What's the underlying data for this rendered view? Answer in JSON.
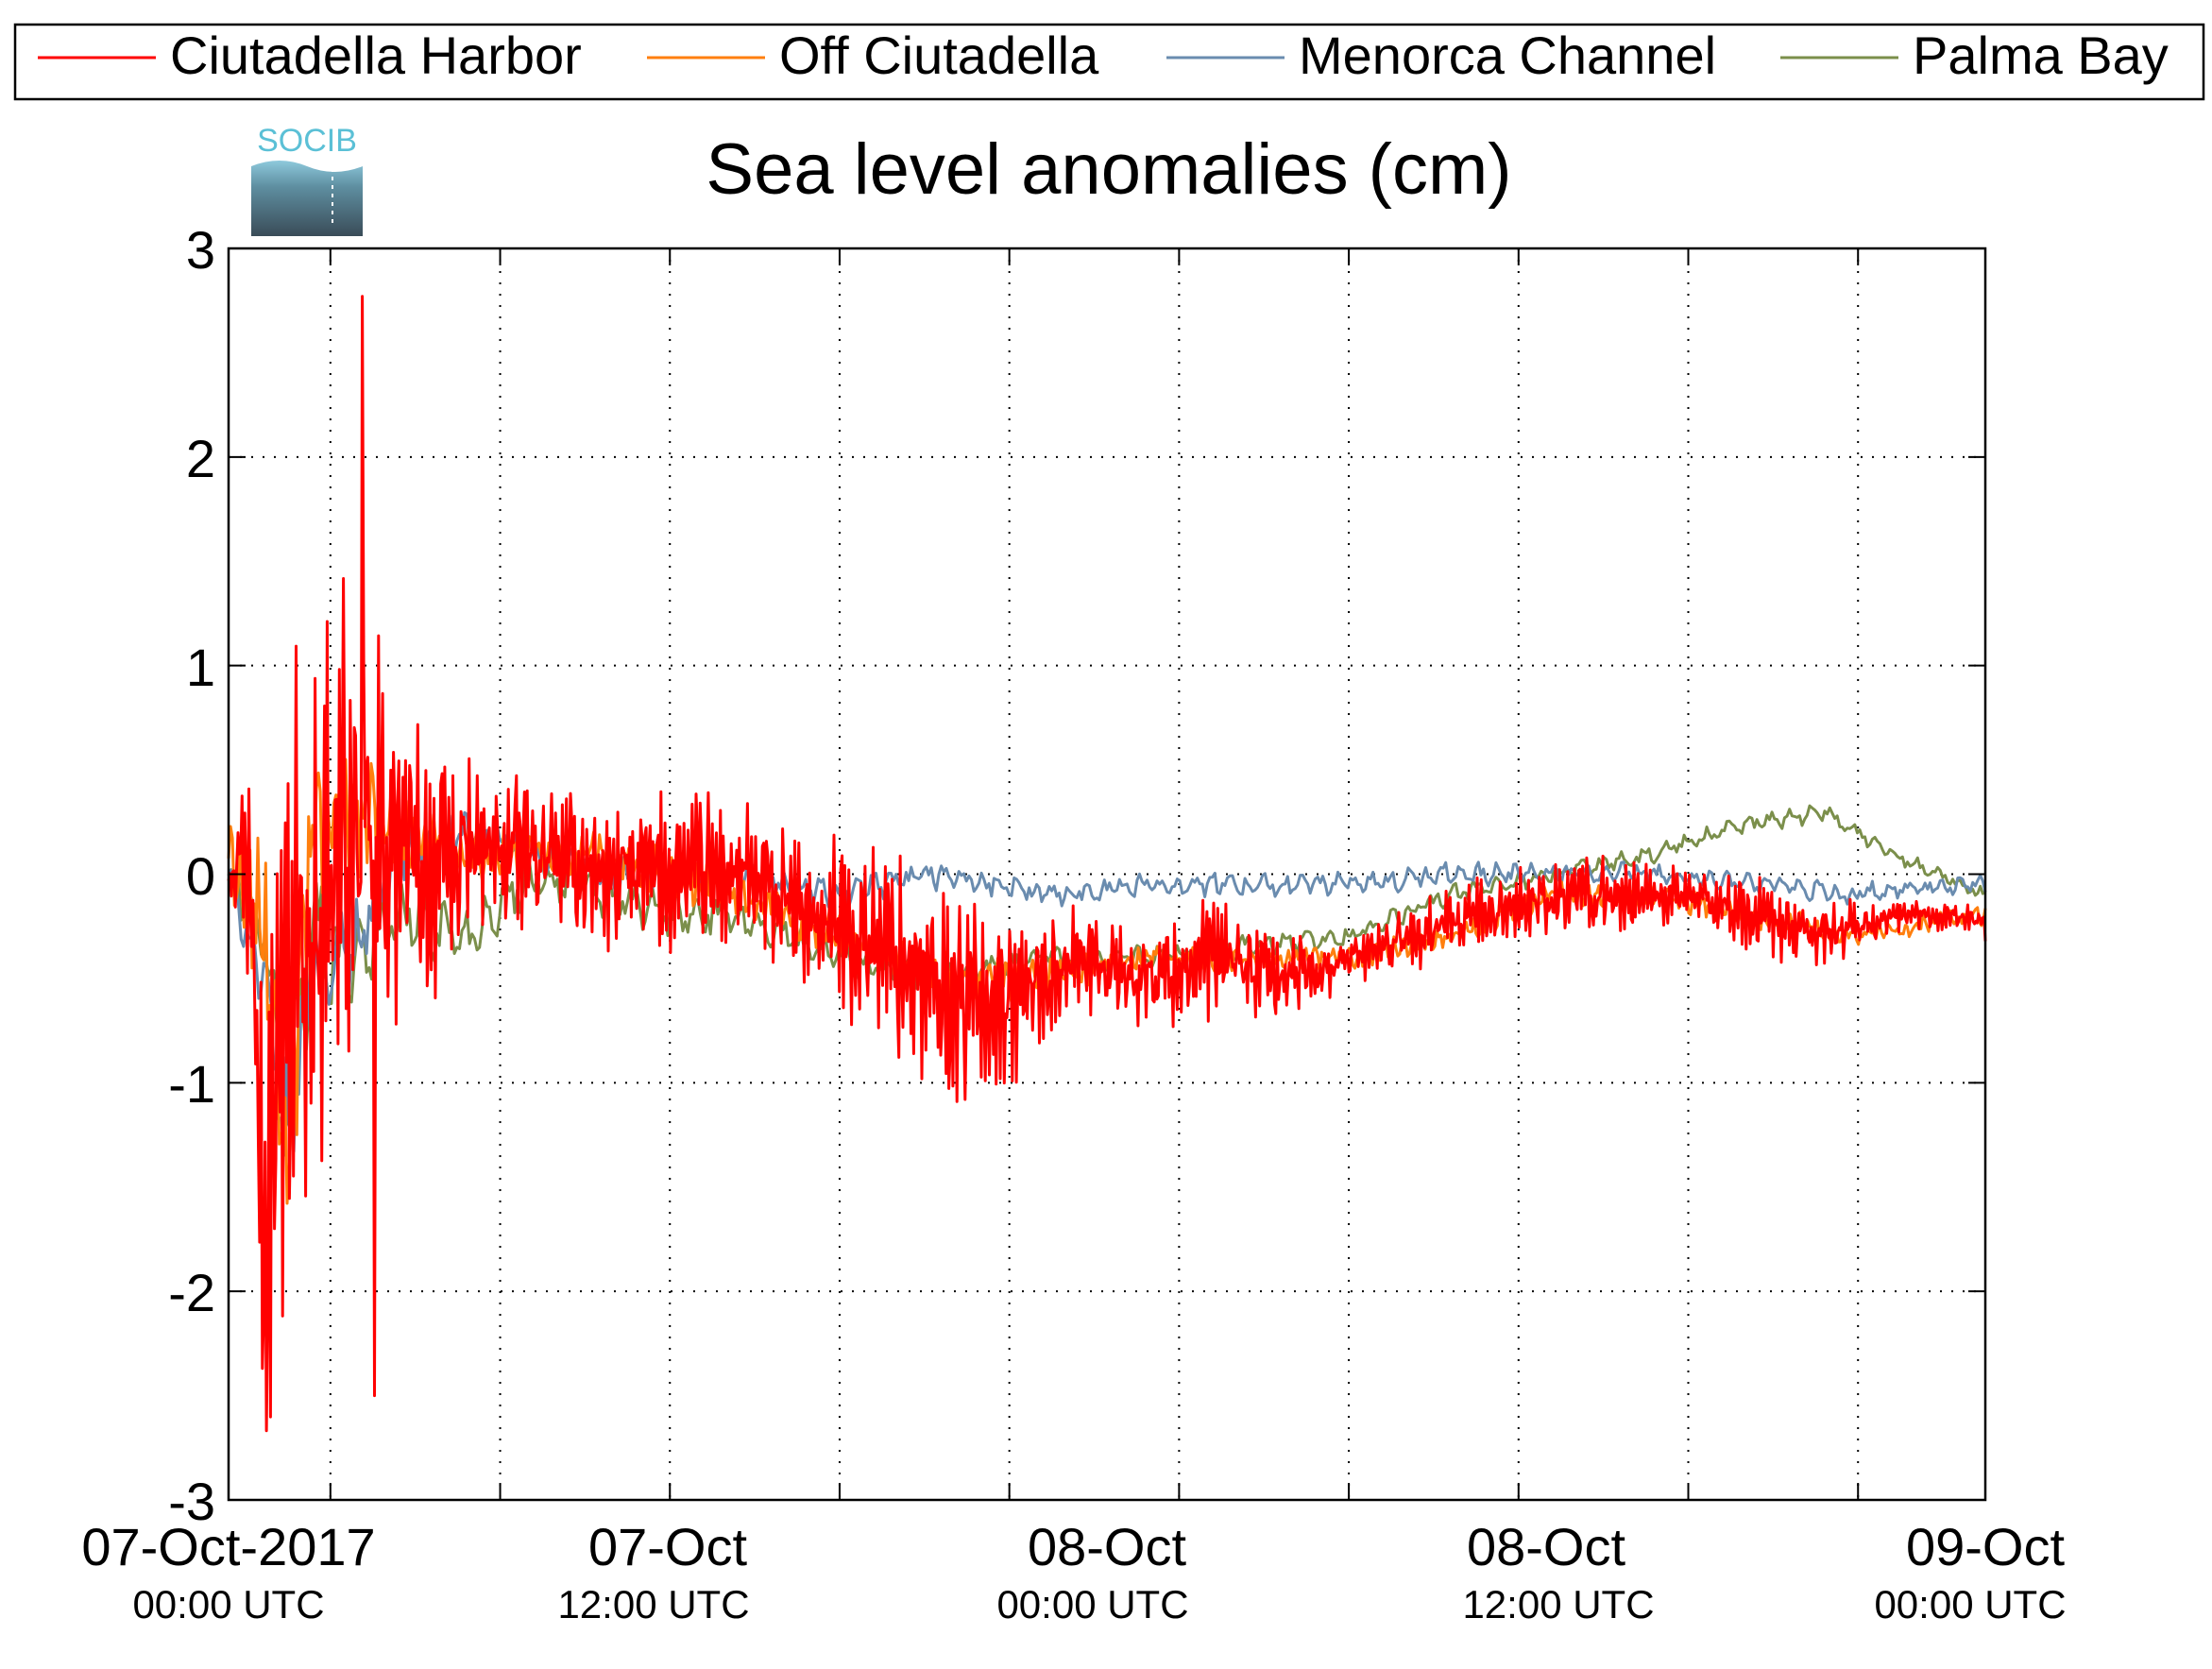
{
  "logo": {
    "text": "SOCIB"
  },
  "chart_data": {
    "type": "line",
    "title": "Sea level anomalies (cm)",
    "xlabel": "",
    "ylabel": "",
    "x_range": [
      "2017-10-06 21:00 UTC",
      "2017-10-09 00:45 UTC"
    ],
    "ylim": [
      -3,
      3
    ],
    "yticks": [
      "3",
      "2",
      "1",
      "0",
      "-1",
      "-2",
      "-3"
    ],
    "ytick_values": [
      3,
      2,
      1,
      0,
      -1,
      -2,
      -3
    ],
    "xtick_hours": [
      0,
      5,
      10,
      15,
      20,
      25,
      30,
      35,
      40,
      45,
      50,
      55,
      60,
      65,
      70,
      75
    ],
    "xtick_labels": [
      {
        "line1": "07-Oct-2017",
        "line2": "00:00 UTC",
        "time": "2017-10-07 00:00"
      },
      {
        "line1": "07-Oct",
        "line2": "12:00 UTC",
        "time": "2017-10-07 12:00"
      },
      {
        "line1": "08-Oct",
        "line2": "00:00 UTC",
        "time": "2017-10-08 00:00"
      },
      {
        "line1": "08-Oct",
        "line2": "12:00 UTC",
        "time": "2017-10-08 12:00"
      },
      {
        "line1": "09-Oct",
        "line2": "00:00 UTC",
        "time": "2017-10-09 00:00"
      }
    ],
    "grid": true,
    "legend_position": "top",
    "series": [
      {
        "name": "Ciutadella Harbor",
        "color": "#ff0000",
        "x": [
          "2017-10-06 21:00",
          "2017-10-06 21:30",
          "2017-10-06 22:00",
          "2017-10-06 23:00",
          "2017-10-07 00:00",
          "2017-10-07 01:00",
          "2017-10-07 02:00",
          "2017-10-07 03:00",
          "2017-10-07 04:00",
          "2017-10-07 06:00",
          "2017-10-07 08:00",
          "2017-10-07 10:00",
          "2017-10-07 12:00",
          "2017-10-07 14:00",
          "2017-10-07 16:00",
          "2017-10-07 18:00",
          "2017-10-07 20:00",
          "2017-10-07 22:00",
          "2017-10-08 00:00",
          "2017-10-08 02:00",
          "2017-10-08 04:00",
          "2017-10-08 06:00",
          "2017-10-08 08:00",
          "2017-10-08 10:00",
          "2017-10-08 12:00",
          "2017-10-08 14:00",
          "2017-10-08 16:00",
          "2017-10-08 18:00",
          "2017-10-08 20:00",
          "2017-10-08 22:00",
          "2017-10-09 00:00",
          "2017-10-09 00:45"
        ],
        "y": [
          0.0,
          0.2,
          -1.2,
          -0.5,
          0.1,
          0.2,
          0.1,
          0.0,
          0.1,
          0.1,
          0.0,
          0.0,
          0.0,
          -0.2,
          -0.3,
          -0.6,
          -0.6,
          -0.4,
          -0.5,
          -0.4,
          -0.5,
          -0.4,
          -0.3,
          -0.2,
          -0.1,
          -0.1,
          -0.1,
          -0.2,
          -0.3,
          -0.2,
          -0.2,
          -0.25
        ],
        "amplitude": [
          0.1,
          0.4,
          1.3,
          1.6,
          1.2,
          0.9,
          0.7,
          0.5,
          0.4,
          0.3,
          0.3,
          0.35,
          0.3,
          0.3,
          0.4,
          0.45,
          0.35,
          0.2,
          0.2,
          0.25,
          0.2,
          0.1,
          0.15,
          0.15,
          0.15,
          0.15,
          0.1,
          0.15,
          0.15,
          0.06,
          0.06,
          0.06
        ],
        "max": 2.77,
        "min": -2.5
      },
      {
        "name": "Off Ciutadella",
        "color": "#ff7f0e",
        "x": [
          "2017-10-06 21:00",
          "2017-10-06 22:00",
          "2017-10-06 22:40",
          "2017-10-06 23:30",
          "2017-10-07 00:30",
          "2017-10-07 02:00",
          "2017-10-07 04:00",
          "2017-10-07 06:00",
          "2017-10-07 08:00",
          "2017-10-07 10:00",
          "2017-10-07 12:00",
          "2017-10-07 15:00",
          "2017-10-07 18:00",
          "2017-10-07 21:00",
          "2017-10-08 00:00",
          "2017-10-08 03:00",
          "2017-10-08 06:00",
          "2017-10-08 09:00",
          "2017-10-08 12:00",
          "2017-10-08 15:00",
          "2017-10-08 18:00",
          "2017-10-08 21:00",
          "2017-10-09 00:00",
          "2017-10-09 00:45"
        ],
        "y": [
          0.1,
          -0.3,
          -1.4,
          0.2,
          0.3,
          0.2,
          0.1,
          0.1,
          0.1,
          0.0,
          -0.1,
          -0.3,
          -0.5,
          -0.5,
          -0.4,
          -0.4,
          -0.4,
          -0.3,
          -0.1,
          -0.1,
          -0.2,
          -0.3,
          -0.2,
          -0.2
        ],
        "amplitude": [
          0.1,
          0.5,
          0.4,
          0.4,
          0.3,
          0.15,
          0.12,
          0.1,
          0.1,
          0.1,
          0.1,
          0.1,
          0.1,
          0.08,
          0.06,
          0.05,
          0.05,
          0.05,
          0.05,
          0.05,
          0.05,
          0.05,
          0.04,
          0.04
        ]
      },
      {
        "name": "Menorca Channel",
        "color": "#6a8caf",
        "x": [
          "2017-10-06 21:00",
          "2017-10-06 22:00",
          "2017-10-06 22:40",
          "2017-10-06 23:30",
          "2017-10-07 00:30",
          "2017-10-07 02:00",
          "2017-10-07 04:00",
          "2017-10-07 06:00",
          "2017-10-07 08:00",
          "2017-10-07 10:00",
          "2017-10-07 12:00",
          "2017-10-07 15:00",
          "2017-10-07 18:00",
          "2017-10-07 21:00",
          "2017-10-08 00:00",
          "2017-10-08 03:00",
          "2017-10-08 06:00",
          "2017-10-08 09:00",
          "2017-10-08 12:00",
          "2017-10-08 15:00",
          "2017-10-08 18:00",
          "2017-10-08 21:00",
          "2017-10-09 00:00",
          "2017-10-09 00:45"
        ],
        "y": [
          0.0,
          -0.5,
          -1.3,
          -0.4,
          -0.4,
          0.1,
          0.2,
          0.1,
          0.0,
          0.0,
          0.0,
          -0.1,
          0.0,
          -0.1,
          -0.05,
          -0.05,
          -0.05,
          0.0,
          0.0,
          0.0,
          -0.05,
          -0.1,
          -0.05,
          -0.05
        ],
        "amplitude": [
          0.05,
          0.2,
          0.3,
          0.3,
          0.2,
          0.12,
          0.1,
          0.08,
          0.08,
          0.08,
          0.07,
          0.07,
          0.06,
          0.05,
          0.05,
          0.05,
          0.05,
          0.05,
          0.05,
          0.05,
          0.05,
          0.05,
          0.04,
          0.04
        ]
      },
      {
        "name": "Palma Bay",
        "color": "#7b8f4b",
        "x": [
          "2017-10-06 21:00",
          "2017-10-06 22:00",
          "2017-10-06 22:40",
          "2017-10-06 23:30",
          "2017-10-07 00:30",
          "2017-10-07 02:00",
          "2017-10-07 04:00",
          "2017-10-07 06:00",
          "2017-10-07 08:00",
          "2017-10-07 10:00",
          "2017-10-07 12:00",
          "2017-10-07 15:00",
          "2017-10-07 18:00",
          "2017-10-07 21:00",
          "2017-10-08 00:00",
          "2017-10-08 03:00",
          "2017-10-08 06:00",
          "2017-10-08 09:00",
          "2017-10-08 12:00",
          "2017-10-08 15:00",
          "2017-10-08 18:00",
          "2017-10-08 20:00",
          "2017-10-08 22:00",
          "2017-10-09 00:00",
          "2017-10-09 00:45"
        ],
        "y": [
          0.0,
          -0.3,
          -1.0,
          -0.3,
          -0.4,
          -0.2,
          -0.3,
          0.0,
          -0.1,
          -0.2,
          -0.2,
          -0.4,
          -0.5,
          -0.4,
          -0.4,
          -0.35,
          -0.3,
          -0.1,
          0.0,
          0.1,
          0.25,
          0.3,
          0.1,
          -0.05,
          -0.1
        ],
        "amplitude": [
          0.05,
          0.2,
          0.3,
          0.3,
          0.2,
          0.15,
          0.12,
          0.1,
          0.1,
          0.1,
          0.08,
          0.08,
          0.06,
          0.05,
          0.05,
          0.05,
          0.04,
          0.04,
          0.04,
          0.04,
          0.04,
          0.04,
          0.04,
          0.03,
          0.03
        ]
      }
    ]
  }
}
